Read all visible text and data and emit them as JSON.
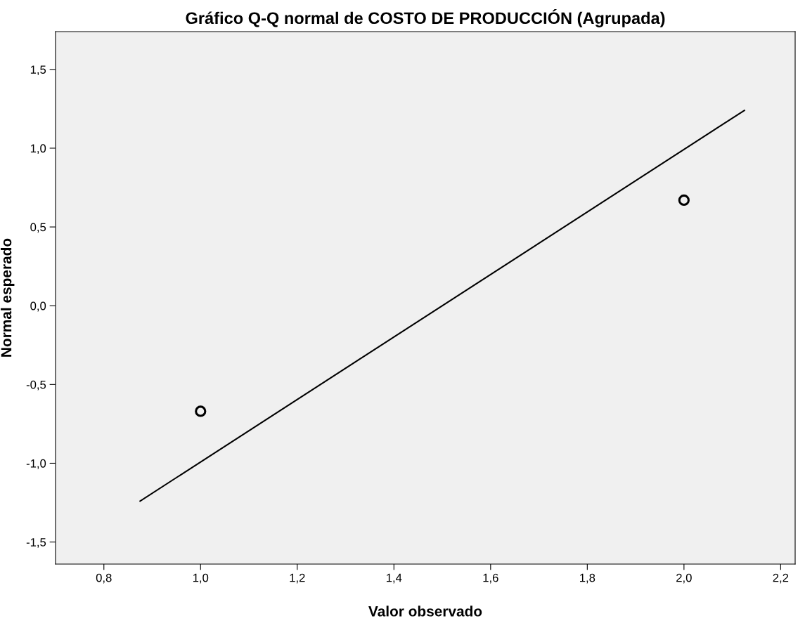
{
  "chart_data": {
    "type": "scatter",
    "title": "Gráfico Q-Q normal de COSTO DE PRODUCCIÓN (Agrupada)",
    "xlabel": "Valor observado",
    "ylabel": "Normal esperado",
    "grid": false,
    "series": [
      {
        "type": "scatter",
        "marker": "circle",
        "color": "#000000",
        "x": [
          1.0,
          2.0
        ],
        "values": [
          -0.67,
          0.67
        ]
      },
      {
        "type": "line",
        "color": "#000000",
        "x": [
          0.875,
          2.125
        ],
        "values": [
          -1.24,
          1.24
        ]
      }
    ],
    "xlim": [
      0.7,
      2.23
    ],
    "ylim": [
      -1.64,
      1.74
    ],
    "xticks": [
      {
        "value": 0.8,
        "label": "0,8"
      },
      {
        "value": 1.0,
        "label": "1,0"
      },
      {
        "value": 1.2,
        "label": "1,2"
      },
      {
        "value": 1.4,
        "label": "1,4"
      },
      {
        "value": 1.6,
        "label": "1,6"
      },
      {
        "value": 1.8,
        "label": "1,8"
      },
      {
        "value": 2.0,
        "label": "2,0"
      },
      {
        "value": 2.2,
        "label": "2,2"
      }
    ],
    "yticks": [
      {
        "value": -1.5,
        "label": "-1,5"
      },
      {
        "value": -1.0,
        "label": "-1,0"
      },
      {
        "value": -0.5,
        "label": "-0,5"
      },
      {
        "value": 0.0,
        "label": "0,0"
      },
      {
        "value": 0.5,
        "label": "0,5"
      },
      {
        "value": 1.0,
        "label": "1,0"
      },
      {
        "value": 1.5,
        "label": "1,5"
      }
    ]
  }
}
